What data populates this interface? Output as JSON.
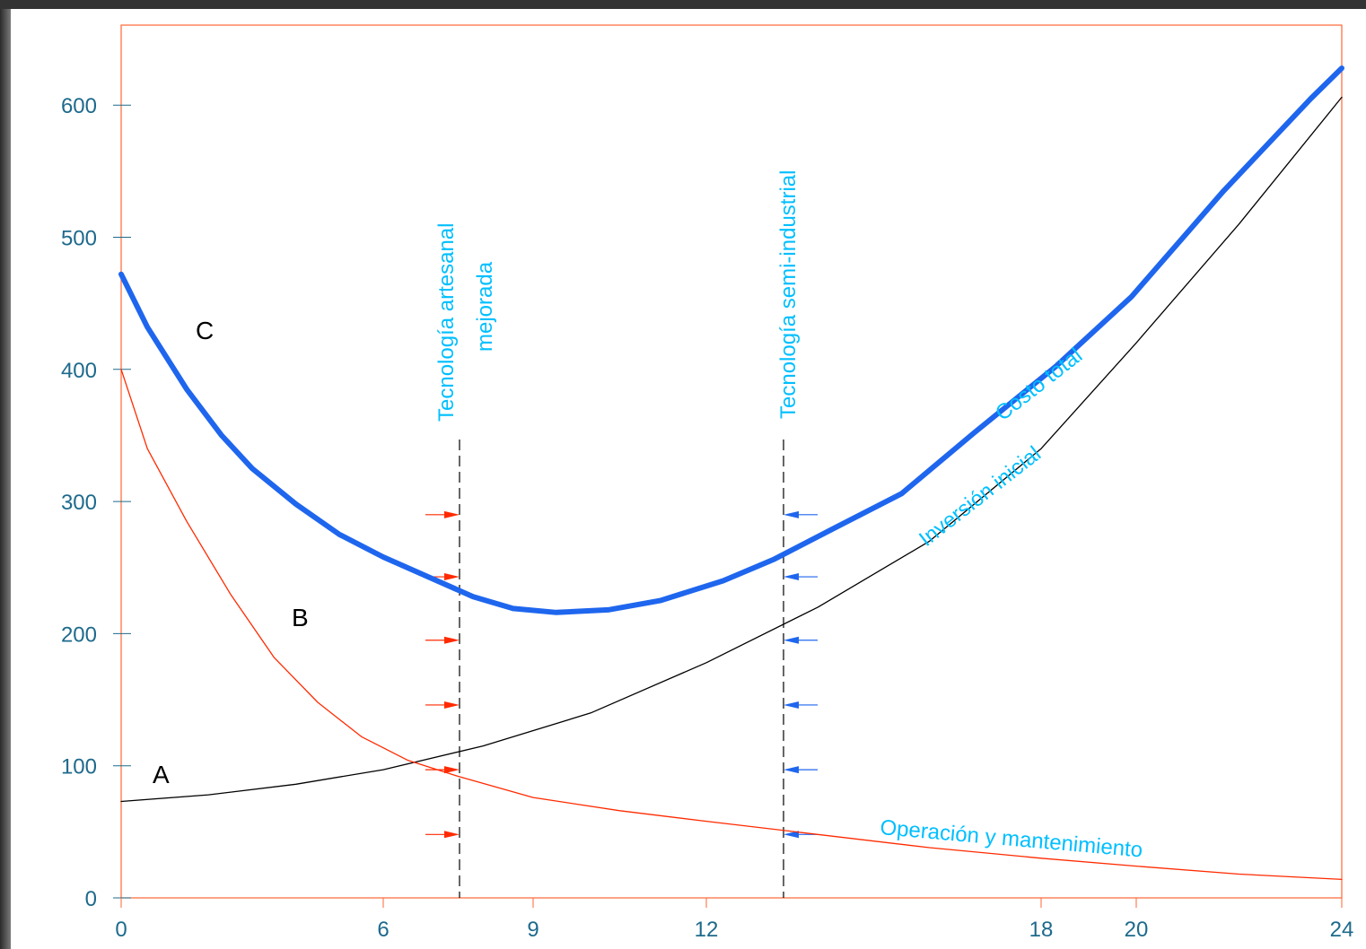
{
  "chart_data": {
    "type": "line",
    "xlabel": "",
    "ylabel": "",
    "x_ticks": [
      "0",
      "6",
      "9",
      "12",
      "18",
      "20",
      "24"
    ],
    "y_ticks": [
      "0",
      "100",
      "200",
      "300",
      "400",
      "500",
      "600"
    ],
    "xlim": [
      0,
      24
    ],
    "ylim": [
      0,
      650
    ],
    "series": [
      {
        "name": "Inversión inicial",
        "label": "A",
        "color": "#000000",
        "points": [
          [
            0,
            73
          ],
          [
            2,
            78
          ],
          [
            4,
            86
          ],
          [
            6,
            97
          ],
          [
            8,
            115
          ],
          [
            10,
            140
          ],
          [
            12,
            178
          ],
          [
            14,
            220
          ],
          [
            16,
            270
          ],
          [
            18,
            340
          ],
          [
            20,
            420
          ],
          [
            22,
            510
          ],
          [
            24,
            606
          ]
        ]
      },
      {
        "name": "Operación y mantenimiento",
        "label": "B",
        "color": "#ff2a00",
        "points": [
          [
            0,
            400
          ],
          [
            0.6,
            340
          ],
          [
            1.5,
            285
          ],
          [
            2.5,
            230
          ],
          [
            3.5,
            182
          ],
          [
            4.5,
            148
          ],
          [
            5.5,
            122
          ],
          [
            6.5,
            104
          ],
          [
            7.5,
            92
          ],
          [
            9,
            76
          ],
          [
            10.5,
            66
          ],
          [
            12,
            58
          ],
          [
            14,
            48
          ],
          [
            16,
            38
          ],
          [
            18,
            30
          ],
          [
            20,
            24
          ],
          [
            22,
            18
          ],
          [
            24,
            14
          ]
        ]
      },
      {
        "name": "Costo total",
        "label": "C",
        "color": "#1f66ee",
        "points": [
          [
            0,
            472
          ],
          [
            0.6,
            432
          ],
          [
            1.5,
            385
          ],
          [
            2.3,
            350
          ],
          [
            3,
            325
          ],
          [
            4,
            298
          ],
          [
            5,
            275
          ],
          [
            6,
            258
          ],
          [
            6.9,
            243
          ],
          [
            7.8,
            228
          ],
          [
            8.6,
            219
          ],
          [
            9.4,
            216
          ],
          [
            10.3,
            218
          ],
          [
            11.2,
            225
          ],
          [
            12.3,
            240
          ],
          [
            13.2,
            256
          ],
          [
            14.3,
            280
          ],
          [
            15.5,
            306
          ],
          [
            16.8,
            352
          ],
          [
            18.3,
            402
          ],
          [
            19.9,
            455
          ],
          [
            21.7,
            535
          ],
          [
            23.4,
            605
          ],
          [
            24,
            628
          ]
        ]
      }
    ],
    "annotations": {
      "technology_1": "Tecnología artesanal",
      "technology_1b": "mejorada",
      "technology_2": "Tecnología semi-industrial",
      "series_label_total": "Costo total",
      "series_label_investment": "Inversión inicial",
      "series_label_operation": "Operación y mantenimiento"
    },
    "vertical_markers": [
      6.65,
      13.2
    ],
    "arrow_levels": [
      290,
      243,
      195,
      146,
      97,
      48
    ],
    "legend": "none",
    "grid": false,
    "colors": {
      "axis": "#ff6633",
      "tick_text": "#1e6a8c",
      "annotation": "#00bfff",
      "arrow_left_group": "#ff2a00",
      "arrow_right_group": "#1f66ee"
    }
  }
}
